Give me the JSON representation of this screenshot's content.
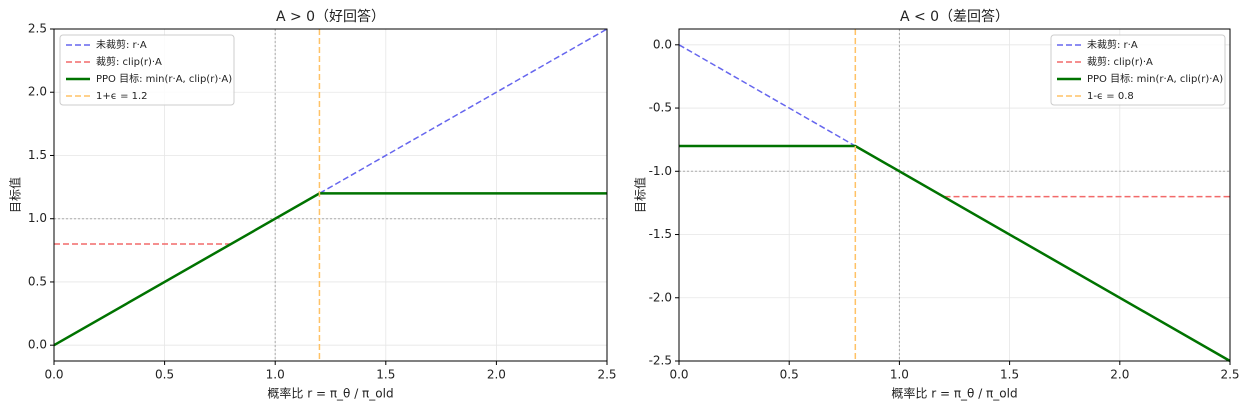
{
  "chart_data": [
    {
      "type": "line",
      "title": "A > 0（好回答）",
      "x_label": "概率比 r = π_θ / π_old",
      "y_label": "目标值",
      "xlim": [
        0,
        2.5
      ],
      "ylim": [
        -0.125,
        2.5
      ],
      "xticks": [
        {
          "value": 0,
          "label": "0.0"
        },
        0.5,
        {
          "value": 1,
          "label": "1.0"
        },
        1.5,
        {
          "value": 2,
          "label": "2.0"
        },
        2.5
      ],
      "yticks": [
        {
          "value": 0,
          "label": "0.0"
        },
        0.5,
        {
          "value": 1,
          "label": "1.0"
        },
        1.5,
        {
          "value": 2,
          "label": "2.0"
        },
        2.5
      ],
      "grid": true,
      "legend": "upper left",
      "ref_x": 1,
      "ref_y": 1,
      "series": [
        {
          "name": "未裁剪: r·A",
          "color": "#6666ee",
          "style": "dashed",
          "x": [
            0,
            2.5
          ],
          "values": [
            0,
            2.5
          ]
        },
        {
          "name": "裁剪: clip(r)·A",
          "color": "#f26a6a",
          "style": "dashed",
          "x": [
            0,
            0.8,
            1.2,
            2.5
          ],
          "values": [
            0.8,
            0.8,
            1.2,
            1.2
          ]
        },
        {
          "name": "PPO 目标: min(r·A, clip(r)·A)",
          "color": "#007300",
          "style": "solid",
          "x": [
            0,
            1.2,
            2.5
          ],
          "values": [
            0,
            1.2,
            1.2
          ]
        }
      ],
      "vline": {
        "name": "1+ϵ = 1.2",
        "color": "#ffc266",
        "x": 1.2
      }
    },
    {
      "type": "line",
      "title": "A < 0（差回答）",
      "x_label": "概率比 r = π_θ / π_old",
      "y_label": "目标值",
      "xlim": [
        0,
        2.5
      ],
      "ylim": [
        -2.5,
        0.125
      ],
      "xticks": [
        {
          "value": 0,
          "label": "0.0"
        },
        0.5,
        {
          "value": 1,
          "label": "1.0"
        },
        1.5,
        {
          "value": 2,
          "label": "2.0"
        },
        2.5
      ],
      "yticks": [
        -2.5,
        {
          "value": -2,
          "label": "-2.0"
        },
        -1.5,
        {
          "value": -1,
          "label": "-1.0"
        },
        -0.5,
        {
          "value": 0,
          "label": "0.0"
        }
      ],
      "grid": true,
      "legend": "upper right",
      "ref_x": 1,
      "ref_y": -1,
      "series": [
        {
          "name": "未裁剪: r·A",
          "color": "#6666ee",
          "style": "dashed",
          "x": [
            0,
            2.5
          ],
          "values": [
            0,
            -2.5
          ]
        },
        {
          "name": "裁剪: clip(r)·A",
          "color": "#f26a6a",
          "style": "dashed",
          "x": [
            0,
            0.8,
            1.2,
            2.5
          ],
          "values": [
            -0.8,
            -0.8,
            -1.2,
            -1.2
          ]
        },
        {
          "name": "PPO 目标: min(r·A, clip(r)·A)",
          "color": "#007300",
          "style": "solid",
          "x": [
            0,
            0.8,
            2.5
          ],
          "values": [
            -0.8,
            -0.8,
            -2.5
          ]
        }
      ],
      "vline": {
        "name": "1-ϵ = 0.8",
        "color": "#ffc266",
        "x": 0.8
      }
    }
  ]
}
